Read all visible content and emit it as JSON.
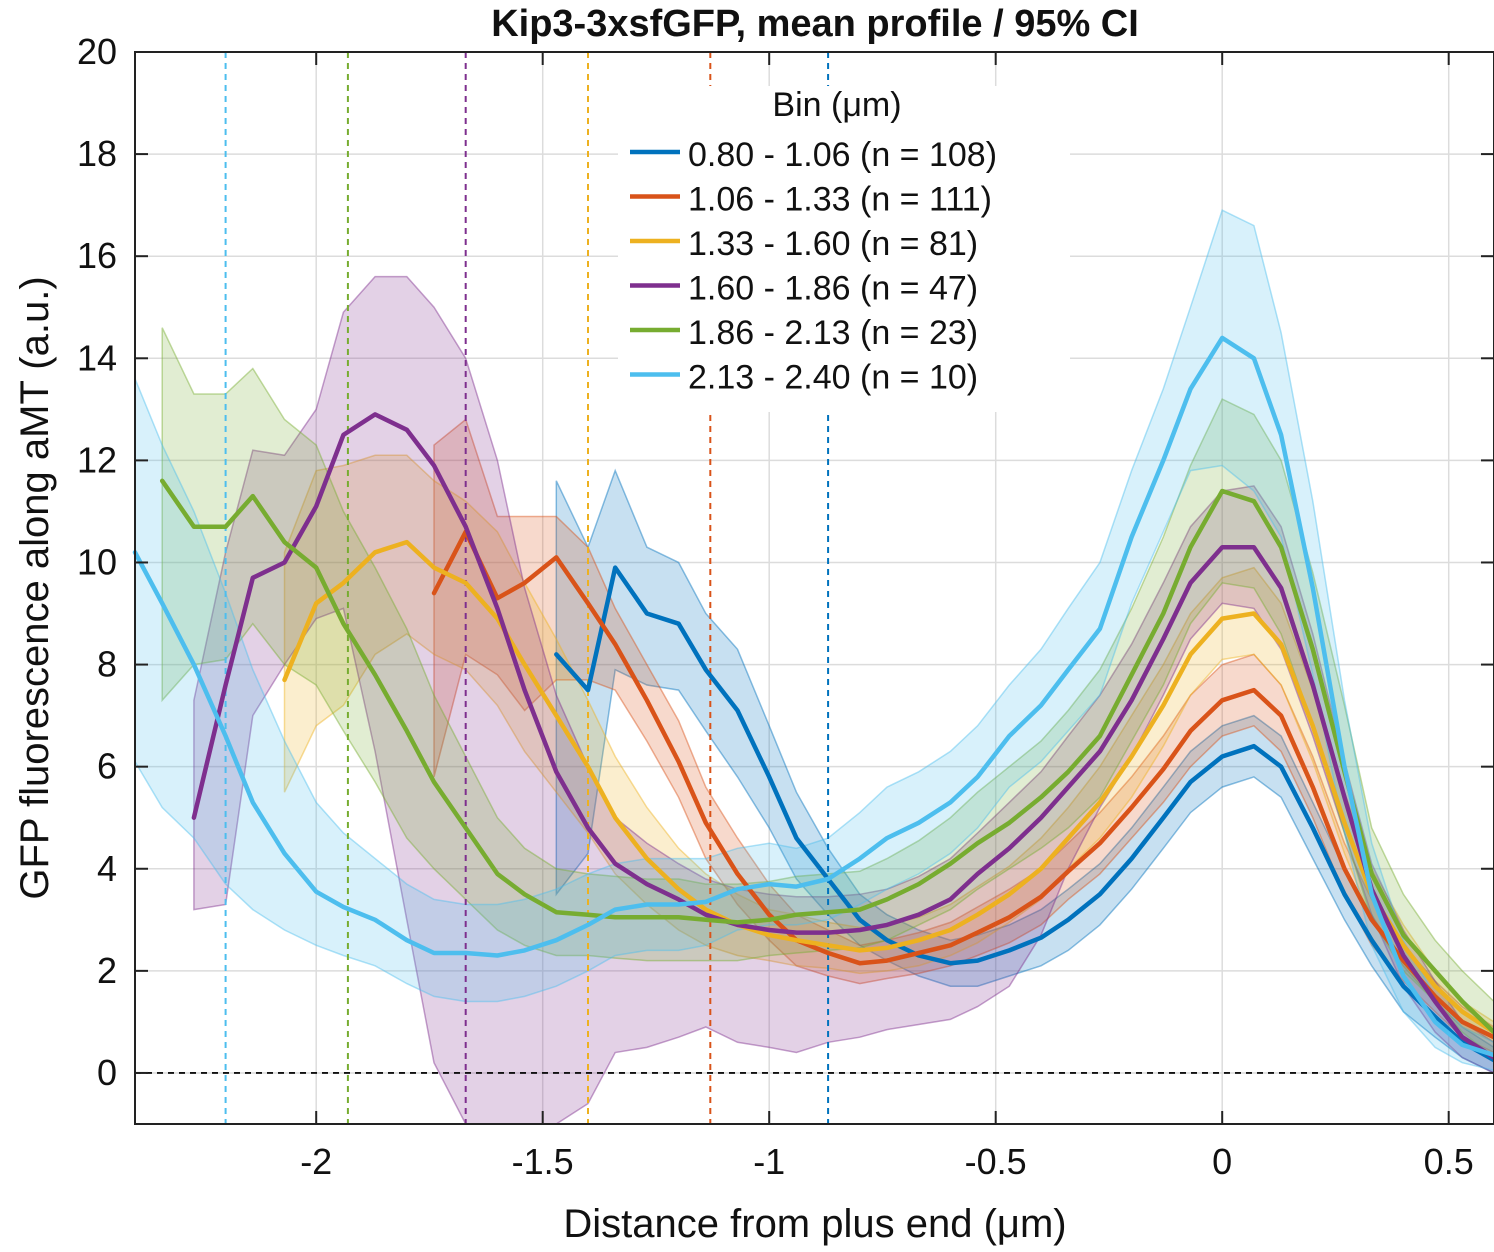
{
  "chart_data": {
    "type": "line",
    "title": "Kip3-3xsfGFP, mean profile / 95% CI",
    "xlabel": "Distance from plus end (μm)",
    "ylabel": "GFP fluorescence along aMT (a.u.)",
    "xlim": [
      -2.4,
      0.6
    ],
    "ylim": [
      -1,
      20
    ],
    "xticks": [
      -2,
      -1.5,
      -1,
      -0.5,
      0,
      0.5
    ],
    "xtick_labels": [
      "-2",
      "-1.5",
      "-1",
      "-0.5",
      "0",
      "0.5"
    ],
    "yticks": [
      0,
      2,
      4,
      6,
      8,
      10,
      12,
      14,
      16,
      18,
      20
    ],
    "ytick_labels": [
      "0",
      "2",
      "4",
      "6",
      "8",
      "10",
      "12",
      "14",
      "16",
      "18",
      "20"
    ],
    "grid": true,
    "zero_line": true,
    "legend": {
      "title": "Bin (μm)",
      "placement": "top-center"
    },
    "series": [
      {
        "name": "0.80 - 1.06 (n = 108)",
        "color": "#0072BD",
        "bin_edge": -0.87,
        "x": [
          -1.47,
          -1.4,
          -1.34,
          -1.27,
          -1.2,
          -1.14,
          -1.07,
          -1.0,
          -0.94,
          -0.87,
          -0.8,
          -0.74,
          -0.67,
          -0.6,
          -0.54,
          -0.47,
          -0.4,
          -0.34,
          -0.27,
          -0.2,
          -0.13,
          -0.07,
          0.0,
          0.07,
          0.13,
          0.2,
          0.27,
          0.33,
          0.4,
          0.47,
          0.53,
          0.6
        ],
        "y": [
          8.2,
          7.5,
          9.9,
          9.0,
          8.8,
          7.9,
          7.1,
          5.8,
          4.6,
          3.8,
          3.0,
          2.6,
          2.3,
          2.15,
          2.2,
          2.4,
          2.65,
          3.0,
          3.5,
          4.2,
          5.0,
          5.7,
          6.2,
          6.4,
          6.0,
          4.8,
          3.5,
          2.6,
          1.7,
          1.1,
          0.6,
          0.25
        ],
        "ci_upper": [
          11.6,
          10.3,
          11.8,
          10.3,
          10.0,
          9.0,
          8.3,
          6.8,
          5.5,
          4.4,
          3.5,
          3.1,
          2.8,
          2.6,
          2.7,
          2.9,
          3.2,
          3.6,
          4.1,
          4.8,
          5.6,
          6.3,
          6.8,
          7.0,
          6.6,
          5.3,
          4.0,
          3.1,
          2.1,
          1.4,
          0.9,
          0.5
        ],
        "ci_lower": [
          3.5,
          4.3,
          7.9,
          7.6,
          7.5,
          6.7,
          5.8,
          4.8,
          3.8,
          3.1,
          2.5,
          2.2,
          1.9,
          1.7,
          1.7,
          1.9,
          2.1,
          2.4,
          2.9,
          3.6,
          4.4,
          5.1,
          5.6,
          5.8,
          5.4,
          4.2,
          3.0,
          2.1,
          1.2,
          0.7,
          0.3,
          0.0
        ]
      },
      {
        "name": "1.06 - 1.33 (n = 111)",
        "color": "#D95319",
        "bin_edge": -1.13,
        "x": [
          -1.74,
          -1.67,
          -1.6,
          -1.54,
          -1.47,
          -1.4,
          -1.34,
          -1.27,
          -1.2,
          -1.14,
          -1.07,
          -1.0,
          -0.94,
          -0.87,
          -0.8,
          -0.74,
          -0.67,
          -0.6,
          -0.54,
          -0.47,
          -0.4,
          -0.34,
          -0.27,
          -0.2,
          -0.13,
          -0.07,
          0.0,
          0.07,
          0.13,
          0.2,
          0.27,
          0.33,
          0.4,
          0.47,
          0.53,
          0.6
        ],
        "y": [
          9.4,
          10.6,
          9.3,
          9.6,
          10.1,
          9.2,
          8.4,
          7.3,
          6.1,
          4.9,
          3.9,
          3.1,
          2.6,
          2.35,
          2.15,
          2.2,
          2.35,
          2.5,
          2.75,
          3.05,
          3.45,
          3.95,
          4.5,
          5.2,
          5.95,
          6.7,
          7.3,
          7.5,
          7.0,
          5.6,
          4.0,
          3.0,
          2.2,
          1.5,
          1.0,
          0.7
        ],
        "ci_upper": [
          12.3,
          12.8,
          10.9,
          10.9,
          10.9,
          10.3,
          9.1,
          8.0,
          6.9,
          5.6,
          4.6,
          3.7,
          3.1,
          2.8,
          2.5,
          2.6,
          2.75,
          2.95,
          3.25,
          3.6,
          4.0,
          4.5,
          5.1,
          5.8,
          6.6,
          7.4,
          8.0,
          8.2,
          7.6,
          6.2,
          4.5,
          3.4,
          2.5,
          1.8,
          1.3,
          0.9
        ],
        "ci_lower": [
          5.8,
          8.2,
          7.8,
          7.1,
          7.7,
          7.7,
          7.5,
          6.5,
          5.4,
          4.2,
          3.3,
          2.6,
          2.1,
          1.9,
          1.75,
          1.85,
          1.95,
          2.1,
          2.3,
          2.55,
          2.9,
          3.4,
          3.9,
          4.6,
          5.3,
          6.0,
          6.6,
          6.8,
          6.3,
          5.0,
          3.5,
          2.5,
          1.8,
          1.2,
          0.7,
          0.4
        ]
      },
      {
        "name": "1.33 - 1.60 (n =  81)",
        "color": "#EDB120",
        "bin_edge": -1.4,
        "x": [
          -2.07,
          -2.0,
          -1.94,
          -1.87,
          -1.8,
          -1.74,
          -1.67,
          -1.6,
          -1.54,
          -1.47,
          -1.4,
          -1.34,
          -1.27,
          -1.2,
          -1.14,
          -1.07,
          -1.0,
          -0.94,
          -0.87,
          -0.8,
          -0.74,
          -0.67,
          -0.6,
          -0.54,
          -0.47,
          -0.4,
          -0.34,
          -0.27,
          -0.2,
          -0.13,
          -0.07,
          0.0,
          0.07,
          0.13,
          0.2,
          0.27,
          0.33,
          0.4,
          0.47,
          0.53,
          0.6
        ],
        "y": [
          7.7,
          9.2,
          9.6,
          10.2,
          10.4,
          9.9,
          9.6,
          8.9,
          8.0,
          7.0,
          6.0,
          5.0,
          4.2,
          3.6,
          3.2,
          2.9,
          2.7,
          2.6,
          2.5,
          2.4,
          2.45,
          2.6,
          2.8,
          3.1,
          3.5,
          4.0,
          4.6,
          5.3,
          6.2,
          7.2,
          8.2,
          8.9,
          9.0,
          8.4,
          6.8,
          4.9,
          3.5,
          2.5,
          1.7,
          1.2,
          0.8
        ],
        "ci_upper": [
          10.2,
          11.8,
          11.9,
          12.1,
          12.1,
          11.6,
          11.2,
          10.6,
          9.6,
          8.5,
          7.3,
          6.2,
          5.2,
          4.4,
          3.9,
          3.5,
          3.2,
          3.1,
          2.95,
          2.85,
          2.9,
          3.05,
          3.3,
          3.65,
          4.05,
          4.6,
          5.2,
          6.0,
          7.0,
          8.0,
          9.0,
          9.7,
          9.9,
          9.2,
          7.5,
          5.5,
          4.0,
          2.9,
          2.0,
          1.4,
          1.0
        ],
        "ci_lower": [
          5.5,
          6.8,
          7.2,
          8.2,
          8.6,
          8.2,
          7.9,
          7.2,
          6.3,
          5.5,
          4.7,
          3.9,
          3.3,
          2.8,
          2.5,
          2.3,
          2.2,
          2.1,
          2.05,
          1.95,
          2.0,
          2.1,
          2.3,
          2.55,
          2.95,
          3.4,
          4.0,
          4.6,
          5.4,
          6.4,
          7.4,
          8.1,
          8.2,
          7.6,
          6.1,
          4.3,
          3.0,
          2.1,
          1.4,
          0.9,
          0.6
        ]
      },
      {
        "name": "1.60 - 1.86 (n =  47)",
        "color": "#7E2F8E",
        "bin_edge": -1.67,
        "x": [
          -2.27,
          -2.2,
          -2.14,
          -2.07,
          -2.0,
          -1.94,
          -1.87,
          -1.8,
          -1.74,
          -1.67,
          -1.6,
          -1.54,
          -1.47,
          -1.4,
          -1.34,
          -1.27,
          -1.2,
          -1.14,
          -1.07,
          -1.0,
          -0.94,
          -0.87,
          -0.8,
          -0.74,
          -0.67,
          -0.6,
          -0.54,
          -0.47,
          -0.4,
          -0.34,
          -0.27,
          -0.2,
          -0.13,
          -0.07,
          0.0,
          0.07,
          0.13,
          0.2,
          0.27,
          0.33,
          0.4,
          0.47,
          0.53,
          0.6
        ],
        "y": [
          5.0,
          7.6,
          9.7,
          10.0,
          11.1,
          12.5,
          12.9,
          12.6,
          11.9,
          10.7,
          9.1,
          7.5,
          5.9,
          4.8,
          4.1,
          3.7,
          3.4,
          3.1,
          2.9,
          2.8,
          2.75,
          2.75,
          2.8,
          2.9,
          3.1,
          3.4,
          3.9,
          4.4,
          5.0,
          5.6,
          6.3,
          7.3,
          8.5,
          9.6,
          10.3,
          10.3,
          9.5,
          7.6,
          5.4,
          3.6,
          2.3,
          1.4,
          0.7,
          0.3
        ],
        "ci_upper": [
          7.3,
          10.2,
          12.2,
          12.1,
          13.0,
          14.9,
          15.6,
          15.6,
          15.0,
          14.0,
          12.0,
          9.5,
          7.4,
          6.0,
          5.0,
          4.5,
          4.1,
          3.8,
          3.6,
          3.5,
          3.45,
          3.45,
          3.5,
          3.6,
          3.85,
          4.2,
          4.7,
          5.3,
          5.9,
          6.6,
          7.4,
          8.4,
          9.6,
          10.7,
          11.4,
          11.5,
          10.7,
          8.6,
          6.1,
          4.1,
          2.8,
          1.8,
          1.0,
          0.6
        ],
        "ci_lower": [
          3.2,
          3.3,
          7.0,
          8.0,
          8.9,
          9.1,
          6.3,
          3.0,
          0.2,
          -1.0,
          -1.0,
          -1.0,
          -1.0,
          -0.6,
          0.4,
          0.5,
          0.7,
          0.9,
          0.6,
          0.5,
          0.4,
          0.6,
          0.7,
          0.85,
          0.95,
          1.05,
          1.3,
          1.7,
          2.7,
          4.0,
          5.2,
          6.2,
          7.4,
          8.5,
          9.2,
          9.1,
          8.3,
          6.6,
          4.7,
          3.1,
          1.7,
          0.8,
          0.3,
          0.0
        ]
      },
      {
        "name": "1.86 - 2.13 (n =  23)",
        "color": "#77AC30",
        "bin_edge": -1.93,
        "x": [
          -2.34,
          -2.27,
          -2.2,
          -2.14,
          -2.07,
          -2.0,
          -1.94,
          -1.87,
          -1.8,
          -1.74,
          -1.67,
          -1.6,
          -1.54,
          -1.47,
          -1.4,
          -1.34,
          -1.27,
          -1.2,
          -1.14,
          -1.07,
          -1.0,
          -0.94,
          -0.87,
          -0.8,
          -0.74,
          -0.67,
          -0.6,
          -0.54,
          -0.47,
          -0.4,
          -0.34,
          -0.27,
          -0.2,
          -0.13,
          -0.07,
          0.0,
          0.07,
          0.13,
          0.2,
          0.27,
          0.33,
          0.4,
          0.47,
          0.53,
          0.6
        ],
        "y": [
          11.6,
          10.7,
          10.7,
          11.3,
          10.4,
          9.9,
          8.8,
          7.8,
          6.7,
          5.7,
          4.8,
          3.9,
          3.5,
          3.15,
          3.1,
          3.05,
          3.05,
          3.05,
          3.0,
          2.95,
          3.0,
          3.1,
          3.15,
          3.2,
          3.4,
          3.7,
          4.1,
          4.5,
          4.9,
          5.4,
          5.9,
          6.6,
          7.8,
          9.0,
          10.3,
          11.4,
          11.2,
          10.3,
          8.3,
          5.9,
          3.9,
          2.7,
          2.0,
          1.4,
          0.8
        ],
        "ci_upper": [
          14.6,
          13.3,
          13.3,
          13.8,
          12.8,
          12.3,
          11.0,
          9.9,
          8.7,
          7.4,
          6.2,
          5.0,
          4.4,
          4.0,
          3.9,
          3.85,
          3.8,
          3.8,
          3.7,
          3.7,
          3.75,
          3.85,
          3.9,
          3.95,
          4.2,
          4.55,
          5.0,
          5.5,
          6.0,
          6.5,
          7.1,
          7.9,
          9.1,
          10.5,
          11.9,
          13.2,
          12.9,
          12.0,
          9.8,
          7.2,
          4.8,
          3.5,
          2.6,
          2.0,
          1.4
        ],
        "ci_lower": [
          7.3,
          8.0,
          8.1,
          8.8,
          8.0,
          7.6,
          6.7,
          5.7,
          4.6,
          4.0,
          3.4,
          2.8,
          2.5,
          2.3,
          2.3,
          2.25,
          2.2,
          2.2,
          2.2,
          2.2,
          2.3,
          2.35,
          2.4,
          2.45,
          2.6,
          2.9,
          3.2,
          3.6,
          4.0,
          4.4,
          4.8,
          5.4,
          6.5,
          7.6,
          8.8,
          9.6,
          9.5,
          8.6,
          6.8,
          4.7,
          3.0,
          2.0,
          1.4,
          0.8,
          0.3
        ]
      },
      {
        "name": "2.13 - 2.40 (n =  10)",
        "color": "#4DBEEE",
        "bin_edge": -2.2,
        "x": [
          -2.4,
          -2.34,
          -2.27,
          -2.2,
          -2.14,
          -2.07,
          -2.0,
          -1.94,
          -1.87,
          -1.8,
          -1.74,
          -1.67,
          -1.6,
          -1.54,
          -1.47,
          -1.4,
          -1.34,
          -1.27,
          -1.2,
          -1.14,
          -1.07,
          -1.0,
          -0.94,
          -0.87,
          -0.8,
          -0.74,
          -0.67,
          -0.6,
          -0.54,
          -0.47,
          -0.4,
          -0.34,
          -0.27,
          -0.2,
          -0.13,
          -0.07,
          0.0,
          0.07,
          0.13,
          0.2,
          0.27,
          0.33,
          0.4,
          0.47,
          0.53,
          0.6
        ],
        "y": [
          10.2,
          9.2,
          8.0,
          6.6,
          5.3,
          4.3,
          3.55,
          3.25,
          3.0,
          2.6,
          2.35,
          2.35,
          2.3,
          2.4,
          2.6,
          2.9,
          3.2,
          3.3,
          3.3,
          3.35,
          3.6,
          3.7,
          3.65,
          3.8,
          4.2,
          4.6,
          4.9,
          5.3,
          5.8,
          6.6,
          7.2,
          7.9,
          8.7,
          10.5,
          12.0,
          13.4,
          14.4,
          14.0,
          12.5,
          9.5,
          6.0,
          3.5,
          1.9,
          1.0,
          0.55,
          0.35
        ],
        "ci_upper": [
          13.6,
          12.3,
          11.0,
          9.4,
          7.9,
          6.5,
          5.3,
          4.7,
          4.2,
          3.7,
          3.4,
          3.3,
          3.3,
          3.4,
          3.6,
          3.9,
          4.1,
          4.2,
          4.2,
          4.2,
          4.4,
          4.5,
          4.4,
          4.6,
          5.1,
          5.6,
          5.9,
          6.3,
          6.8,
          7.6,
          8.3,
          9.1,
          10.0,
          11.8,
          13.4,
          15.0,
          16.9,
          16.6,
          14.5,
          11.2,
          7.3,
          4.5,
          2.6,
          1.5,
          0.9,
          0.6
        ],
        "ci_lower": [
          6.1,
          5.2,
          4.6,
          3.7,
          3.2,
          2.8,
          2.5,
          2.3,
          2.1,
          1.75,
          1.5,
          1.4,
          1.4,
          1.5,
          1.7,
          2.0,
          2.3,
          2.4,
          2.4,
          2.5,
          2.8,
          2.9,
          2.9,
          3.0,
          3.3,
          3.6,
          3.9,
          4.3,
          4.8,
          5.6,
          6.1,
          6.7,
          7.4,
          9.2,
          10.6,
          11.8,
          11.9,
          11.4,
          10.5,
          7.8,
          4.7,
          2.5,
          1.2,
          0.5,
          0.2,
          0.05
        ]
      }
    ]
  }
}
